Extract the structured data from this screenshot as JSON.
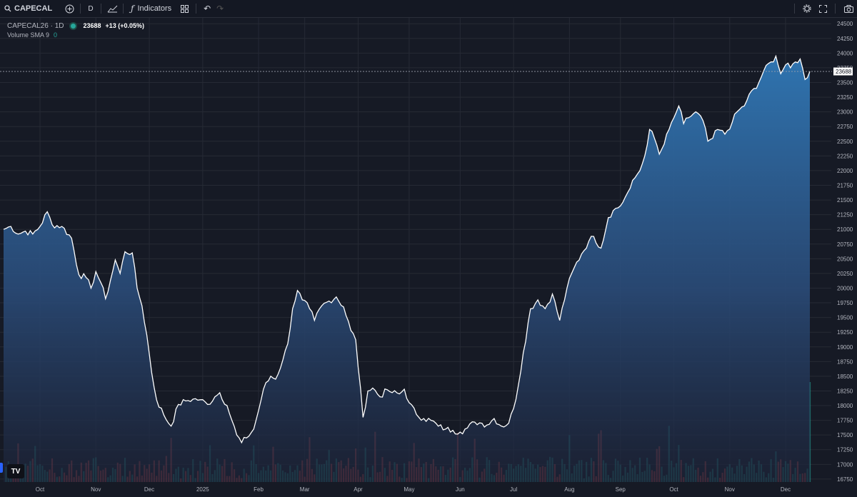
{
  "toolbar": {
    "symbol": "CAPECAL",
    "interval": "D",
    "indicators_label": "Indicators"
  },
  "legend": {
    "title": "CAPECAL26 · 1D",
    "price": "23688",
    "change": "+13 (+0.05%)",
    "volume": "Volume SMA 9",
    "volume_value": "0"
  },
  "colors": {
    "background": "#161a25",
    "grid": "#262a35",
    "line": "#ffffff",
    "area_top": "#2f6fa8",
    "up": "#26a69a",
    "down": "#ef5350"
  },
  "chart_data": {
    "type": "area",
    "title": "CAPECAL26 · 1D",
    "last_price": 23688,
    "ylim": [
      16700,
      24600
    ],
    "yticks": [
      24500,
      24250,
      24000,
      23750,
      23500,
      23250,
      23000,
      22750,
      22500,
      22250,
      22000,
      21750,
      21500,
      21250,
      21000,
      20750,
      20500,
      20250,
      20000,
      19750,
      19500,
      19250,
      19000,
      18750,
      18500,
      18250,
      18000,
      17750,
      17500,
      17250,
      17000,
      16750
    ],
    "xticks": [
      {
        "label": "Oct",
        "i": 15
      },
      {
        "label": "Nov",
        "i": 38
      },
      {
        "label": "Dec",
        "i": 60
      },
      {
        "label": "2025",
        "i": 82
      },
      {
        "label": "Feb",
        "i": 105
      },
      {
        "label": "Mar",
        "i": 124
      },
      {
        "label": "Apr",
        "i": 146
      },
      {
        "label": "May",
        "i": 167
      },
      {
        "label": "Jun",
        "i": 188
      },
      {
        "label": "Jul",
        "i": 210
      },
      {
        "label": "Aug",
        "i": 233
      },
      {
        "label": "Sep",
        "i": 254
      },
      {
        "label": "Oct",
        "i": 276
      },
      {
        "label": "Nov",
        "i": 299
      },
      {
        "label": "Dec",
        "i": 322
      }
    ],
    "anchors": [
      [
        0,
        21000
      ],
      [
        3,
        21050
      ],
      [
        6,
        20920
      ],
      [
        9,
        20970
      ],
      [
        12,
        20920
      ],
      [
        15,
        21050
      ],
      [
        18,
        21300
      ],
      [
        20,
        21080
      ],
      [
        24,
        21050
      ],
      [
        28,
        20850
      ],
      [
        31,
        20230
      ],
      [
        34,
        20180
      ],
      [
        36,
        20000
      ],
      [
        38,
        20280
      ],
      [
        40,
        20100
      ],
      [
        42,
        19820
      ],
      [
        44,
        20130
      ],
      [
        46,
        20480
      ],
      [
        48,
        20250
      ],
      [
        50,
        20620
      ],
      [
        53,
        20600
      ],
      [
        55,
        20000
      ],
      [
        57,
        19700
      ],
      [
        59,
        19200
      ],
      [
        61,
        18560
      ],
      [
        63,
        18100
      ],
      [
        66,
        17840
      ],
      [
        69,
        17650
      ],
      [
        72,
        18020
      ],
      [
        75,
        18080
      ],
      [
        78,
        18110
      ],
      [
        81,
        18100
      ],
      [
        84,
        18020
      ],
      [
        87,
        18150
      ],
      [
        89,
        18220
      ],
      [
        92,
        18000
      ],
      [
        94,
        17750
      ],
      [
        96,
        17500
      ],
      [
        98,
        17370
      ],
      [
        100,
        17450
      ],
      [
        103,
        17600
      ],
      [
        105,
        17920
      ],
      [
        107,
        18280
      ],
      [
        110,
        18500
      ],
      [
        112,
        18450
      ],
      [
        115,
        18780
      ],
      [
        117,
        19050
      ],
      [
        119,
        19650
      ],
      [
        121,
        19960
      ],
      [
        123,
        19800
      ],
      [
        126,
        19650
      ],
      [
        128,
        19450
      ],
      [
        131,
        19700
      ],
      [
        134,
        19780
      ],
      [
        137,
        19850
      ],
      [
        140,
        19680
      ],
      [
        143,
        19280
      ],
      [
        145,
        19120
      ],
      [
        148,
        17800
      ],
      [
        150,
        18250
      ],
      [
        152,
        18300
      ],
      [
        155,
        18150
      ],
      [
        158,
        18270
      ],
      [
        160,
        18220
      ],
      [
        163,
        18200
      ],
      [
        165,
        18280
      ],
      [
        167,
        18050
      ],
      [
        170,
        17850
      ],
      [
        173,
        17780
      ],
      [
        176,
        17750
      ],
      [
        179,
        17650
      ],
      [
        182,
        17600
      ],
      [
        185,
        17580
      ],
      [
        188,
        17550
      ],
      [
        191,
        17620
      ],
      [
        194,
        17720
      ],
      [
        197,
        17700
      ],
      [
        199,
        17670
      ],
      [
        202,
        17780
      ],
      [
        205,
        17650
      ],
      [
        208,
        17700
      ],
      [
        210,
        17950
      ],
      [
        212,
        18350
      ],
      [
        214,
        18900
      ],
      [
        217,
        19650
      ],
      [
        220,
        19800
      ],
      [
        223,
        19650
      ],
      [
        226,
        19900
      ],
      [
        229,
        19450
      ],
      [
        232,
        20000
      ],
      [
        235,
        20350
      ],
      [
        238,
        20580
      ],
      [
        241,
        20800
      ],
      [
        243,
        20880
      ],
      [
        246,
        20680
      ],
      [
        249,
        21200
      ],
      [
        251,
        21320
      ],
      [
        254,
        21400
      ],
      [
        256,
        21550
      ],
      [
        258,
        21700
      ],
      [
        260,
        21880
      ],
      [
        262,
        22000
      ],
      [
        264,
        22250
      ],
      [
        266,
        22700
      ],
      [
        268,
        22550
      ],
      [
        270,
        22280
      ],
      [
        272,
        22450
      ],
      [
        274,
        22700
      ],
      [
        276,
        22900
      ],
      [
        278,
        23100
      ],
      [
        280,
        22800
      ],
      [
        282,
        22900
      ],
      [
        285,
        23000
      ],
      [
        288,
        22850
      ],
      [
        290,
        22500
      ],
      [
        292,
        22550
      ],
      [
        294,
        22700
      ],
      [
        297,
        22620
      ],
      [
        300,
        22820
      ],
      [
        302,
        23000
      ],
      [
        305,
        23100
      ],
      [
        307,
        23300
      ],
      [
        310,
        23400
      ],
      [
        313,
        23700
      ],
      [
        316,
        23850
      ],
      [
        318,
        23950
      ],
      [
        320,
        23650
      ],
      [
        322,
        23800
      ],
      [
        324,
        23750
      ],
      [
        326,
        23850
      ],
      [
        328,
        23900
      ],
      [
        330,
        23550
      ],
      [
        332,
        23688
      ]
    ],
    "volume_note": "Volume histogram (mostly low bars, tall spike at last bar)"
  }
}
